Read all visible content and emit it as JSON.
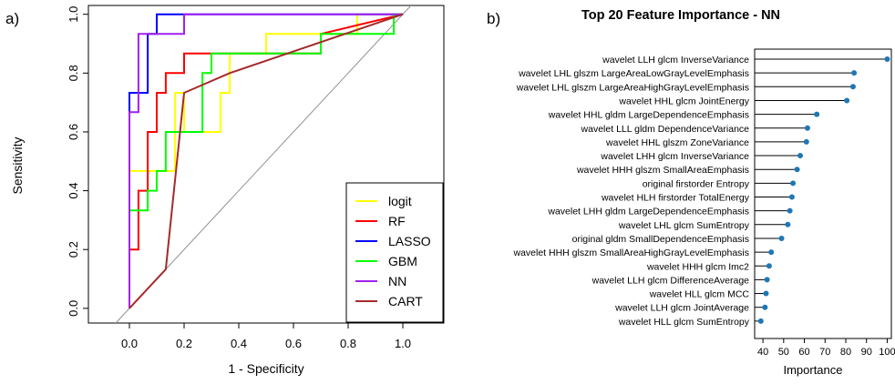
{
  "panel_a": {
    "tag": "a)"
  },
  "panel_b": {
    "tag": "b)"
  },
  "chart_data": [
    {
      "type": "line",
      "title": "",
      "xlabel": "1 - Specificity",
      "ylabel": "Sensitivity",
      "xlim": [
        -0.15,
        1.15
      ],
      "ylim": [
        -0.05,
        1.03
      ],
      "xticks": [
        "0.0",
        "0.2",
        "0.4",
        "0.6",
        "0.8",
        "1.0"
      ],
      "yticks": [
        "0.0",
        "0.2",
        "0.4",
        "0.6",
        "0.8",
        "1.0"
      ],
      "diagonal_reference": true,
      "legend_position": "bottom-right",
      "series": [
        {
          "name": "logit",
          "color": "#ffff00",
          "x": [
            0,
            0,
            0.167,
            0.167,
            0.2,
            0.2,
            0.333,
            0.333,
            0.367,
            0.367,
            0.5,
            0.5,
            0.833,
            0.833,
            1
          ],
          "y": [
            0,
            0.467,
            0.467,
            0.733,
            0.733,
            0.6,
            0.6,
            0.733,
            0.733,
            0.867,
            0.867,
            0.933,
            0.933,
            1,
            1
          ]
        },
        {
          "name": "RF",
          "color": "#ff0000",
          "x": [
            0,
            0,
            0.033,
            0.033,
            0.067,
            0.067,
            0.1,
            0.1,
            0.133,
            0.133,
            0.2,
            0.2,
            0.3,
            0.3,
            0.7,
            0.7,
            1
          ],
          "y": [
            0,
            0.2,
            0.2,
            0.4,
            0.4,
            0.6,
            0.6,
            0.733,
            0.733,
            0.8,
            0.8,
            0.867,
            0.867,
            0.867,
            0.867,
            0.933,
            1
          ]
        },
        {
          "name": "LASSO",
          "color": "#0000ff",
          "x": [
            0,
            0,
            0.067,
            0.067,
            0.1,
            0.1,
            1
          ],
          "y": [
            0,
            0.733,
            0.733,
            0.933,
            0.933,
            1,
            1
          ]
        },
        {
          "name": "GBM",
          "color": "#00ff00",
          "x": [
            0,
            0,
            0.067,
            0.067,
            0.1,
            0.1,
            0.133,
            0.133,
            0.267,
            0.267,
            0.3,
            0.3,
            0.7,
            0.7,
            0.967,
            0.967,
            1
          ],
          "y": [
            0,
            0.333,
            0.333,
            0.4,
            0.4,
            0.467,
            0.467,
            0.6,
            0.6,
            0.8,
            0.8,
            0.867,
            0.867,
            0.933,
            0.933,
            1,
            1
          ]
        },
        {
          "name": "NN",
          "color": "#a020f0",
          "x": [
            0,
            0,
            0.033,
            0.033,
            0.2,
            0.2,
            0.867,
            0.867,
            1
          ],
          "y": [
            0,
            0.667,
            0.667,
            0.933,
            0.933,
            1,
            1,
            1,
            1
          ]
        },
        {
          "name": "CART",
          "color": "#a52a2a",
          "x": [
            0,
            0.133,
            0.2,
            0.367,
            1
          ],
          "y": [
            0,
            0.133,
            0.733,
            0.8,
            1
          ]
        }
      ]
    },
    {
      "type": "lollipop",
      "title": "Top 20 Feature Importance - NN",
      "xlabel": "Importance",
      "ylabel": "",
      "xlim": [
        36,
        102
      ],
      "xticks": [
        40,
        50,
        60,
        70,
        80,
        90,
        100
      ],
      "point_color": "#1f77b4",
      "categories": [
        "wavelet LLH glcm InverseVariance",
        "wavelet LHL glszm LargeAreaLowGrayLevelEmphasis",
        "wavelet LHL glszm LargeAreaHighGrayLevelEmphasis",
        "wavelet HHL glcm JointEnergy",
        "wavelet HHL gldm LargeDependenceEmphasis",
        "wavelet LLL gldm DependenceVariance",
        "wavelet HHL glszm ZoneVariance",
        "wavelet LHH glcm InverseVariance",
        "wavelet HHH glszm SmallAreaEmphasis",
        "original firstorder Entropy",
        "wavelet HLH firstorder TotalEnergy",
        "wavelet LHH gldm LargeDependenceEmphasis",
        "wavelet LHL glcm SumEntropy",
        "original gldm SmallDependenceEmphasis",
        "wavelet HHH glszm SmallAreaHighGrayLevelEmphasis",
        "wavelet HHH glcm Imc2",
        "wavelet LLH glcm DifferenceAverage",
        "wavelet HLL glcm MCC",
        "wavelet LLH glcm JointAverage",
        "wavelet HLL glcm SumEntropy"
      ],
      "values": [
        100,
        84,
        83.5,
        80.5,
        66,
        61.5,
        61,
        58,
        56.5,
        54.5,
        54,
        53,
        52,
        49,
        44,
        43,
        42,
        41.5,
        41,
        39
      ]
    }
  ]
}
